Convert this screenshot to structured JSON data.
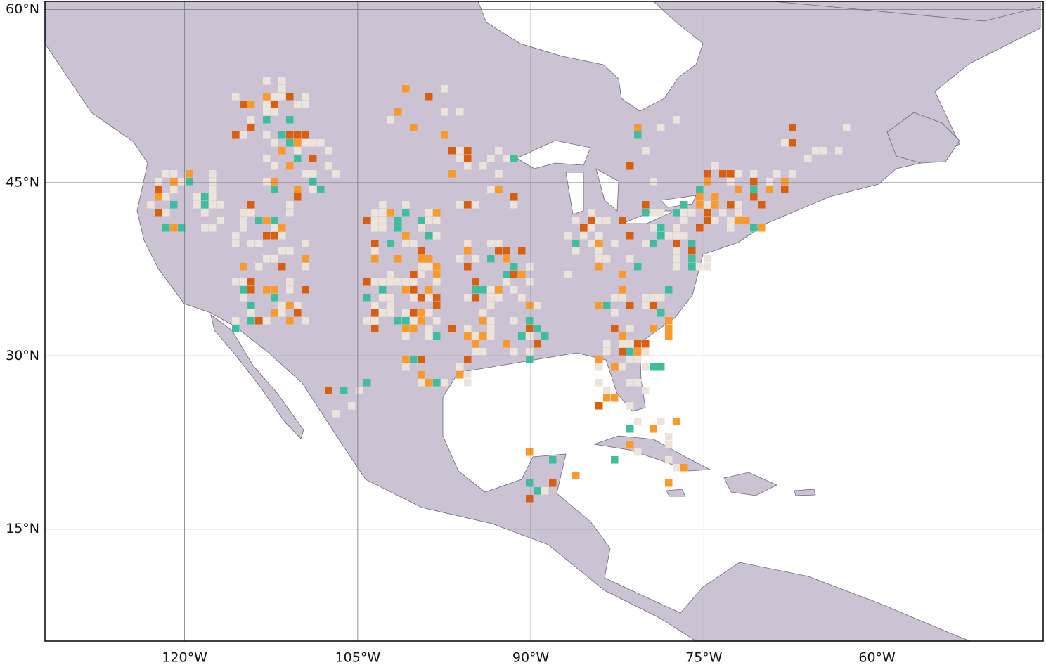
{
  "map": {
    "xlim": [
      -132.1,
      -45.6
    ],
    "ylim": [
      5.3,
      60.7
    ],
    "xticks": [
      {
        "value": -120,
        "label": "120°W"
      },
      {
        "value": -105,
        "label": "105°W"
      },
      {
        "value": -90,
        "label": "90°W"
      },
      {
        "value": -75,
        "label": "75°W"
      },
      {
        "value": -60,
        "label": "60°W"
      }
    ],
    "yticks": [
      {
        "value": 15,
        "label": "15°N"
      },
      {
        "value": 30,
        "label": "30°N"
      },
      {
        "value": 45,
        "label": "45°N"
      },
      {
        "value": 60,
        "label": "60°N"
      }
    ],
    "grid": true
  }
}
